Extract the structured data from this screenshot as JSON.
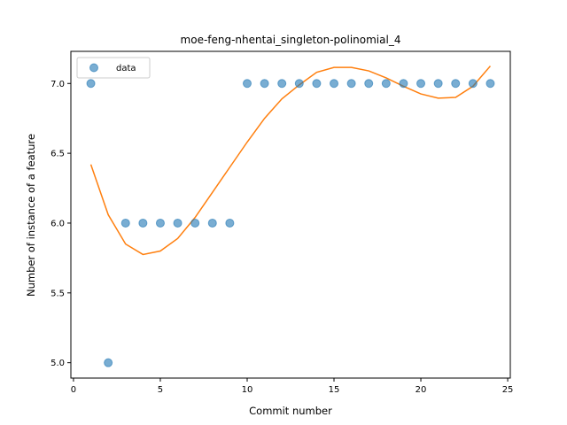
{
  "chart_data": {
    "type": "scatter",
    "title": "moe-feng-nhentai_singleton-polinomial_4",
    "xlabel": "Commit number",
    "ylabel": "Number of instance of a feature",
    "xlim": [
      -0.15,
      25.15
    ],
    "ylim": [
      4.89,
      7.23
    ],
    "xticks": [
      0,
      5,
      10,
      15,
      20,
      25
    ],
    "yticks": [
      5.0,
      5.5,
      6.0,
      6.5,
      7.0
    ],
    "grid": false,
    "legend_placement": "top-left",
    "series": [
      {
        "name": "data",
        "kind": "scatter",
        "color": "#1f77b4",
        "x": [
          1,
          2,
          3,
          4,
          5,
          6,
          7,
          8,
          9,
          10,
          11,
          12,
          13,
          14,
          15,
          16,
          17,
          18,
          19,
          20,
          21,
          22,
          23,
          24
        ],
        "y": [
          7,
          5,
          6,
          6,
          6,
          6,
          6,
          6,
          6,
          7,
          7,
          7,
          7,
          7,
          7,
          7,
          7,
          7,
          7,
          7,
          7,
          7,
          7,
          7
        ]
      },
      {
        "kind": "line",
        "color": "#ff7f0e",
        "x": [
          1,
          2,
          3,
          4,
          5,
          6,
          7,
          8,
          9,
          10,
          11,
          12,
          13,
          14,
          15,
          16,
          17,
          18,
          19,
          20,
          21,
          22,
          23,
          24
        ],
        "y": [
          6.42,
          6.06,
          5.85,
          5.775,
          5.8,
          5.89,
          6.04,
          6.22,
          6.4,
          6.58,
          6.75,
          6.89,
          6.99,
          7.08,
          7.115,
          7.115,
          7.09,
          7.04,
          6.98,
          6.925,
          6.895,
          6.9,
          6.98,
          7.125
        ]
      }
    ]
  }
}
